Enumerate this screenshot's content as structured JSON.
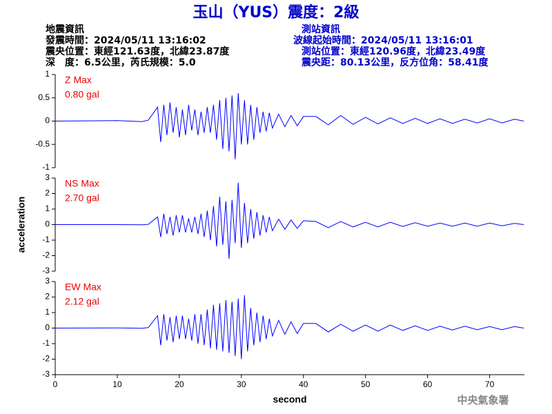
{
  "header": {
    "title": "玉山（YUS）震度：2級",
    "event_info": [
      "地震資訊",
      "發震時間：2024/05/11 13:16:02",
      "震央位置：東經121.63度，北緯23.87度",
      "深　度：6.5公里，芮氏規模：5.0"
    ],
    "station_info": [
      "測站資訊",
      "波線起始時間：2024/05/11 13:16:01",
      "測站位置：東經120.96度，北緯23.49度",
      "震央距：80.13公里，反方位角：58.41度"
    ]
  },
  "chart_data": [
    {
      "type": "line",
      "annotation": [
        "Z Max",
        "0.80 gal"
      ],
      "color": "#0000ff",
      "xlim": [
        0,
        75.6
      ],
      "ylim": [
        -1,
        1
      ],
      "yticks": [
        -1,
        -0.5,
        0,
        0.5,
        1
      ],
      "x": [
        0,
        10,
        14,
        15,
        16.5,
        17,
        17.5,
        18,
        18.5,
        19,
        19.5,
        20,
        20.5,
        21,
        21.5,
        22,
        22.5,
        23,
        23.5,
        24,
        24.5,
        25,
        25.5,
        26,
        26.5,
        27,
        27.5,
        28,
        28.5,
        29,
        29.5,
        30,
        30.5,
        31,
        31.5,
        32,
        32.5,
        33,
        33.5,
        34,
        34.5,
        35,
        36,
        37,
        38,
        39,
        40,
        42,
        44,
        46,
        48,
        50,
        52,
        54,
        56,
        58,
        60,
        62,
        64,
        66,
        68,
        70,
        72,
        74,
        75.5
      ],
      "values": [
        0,
        0.01,
        -0.01,
        0.02,
        0.3,
        -0.45,
        0.35,
        -0.3,
        0.4,
        -0.25,
        0.3,
        -0.35,
        0.25,
        -0.3,
        0.35,
        -0.2,
        0.25,
        -0.3,
        0.2,
        -0.25,
        0.3,
        -0.25,
        0.35,
        -0.4,
        0.45,
        -0.6,
        0.5,
        -0.65,
        0.55,
        -0.82,
        0.6,
        -0.5,
        0.45,
        -0.5,
        0.35,
        -0.4,
        0.3,
        -0.25,
        0.2,
        -0.22,
        0.18,
        -0.15,
        0.15,
        -0.12,
        0.12,
        -0.1,
        0.1,
        0.1,
        -0.08,
        0.12,
        -0.07,
        0.08,
        -0.06,
        0.07,
        -0.05,
        0.06,
        -0.05,
        0.05,
        -0.05,
        0.04,
        -0.04,
        0.05,
        -0.04,
        0.04,
        0
      ]
    },
    {
      "type": "line",
      "annotation": [
        "NS Max",
        "2.70 gal"
      ],
      "color": "#0000ff",
      "xlim": [
        0,
        75.6
      ],
      "ylim": [
        -3,
        3
      ],
      "yticks": [
        -3,
        -2,
        -1,
        0,
        1,
        2,
        3
      ],
      "ylabel": "acceleration",
      "x": [
        0,
        10,
        14,
        15,
        16.5,
        17,
        17.5,
        18,
        18.5,
        19,
        19.5,
        20,
        20.5,
        21,
        21.5,
        22,
        22.5,
        23,
        23.5,
        24,
        24.5,
        25,
        25.5,
        26,
        26.5,
        27,
        27.5,
        28,
        28.5,
        29,
        29.5,
        30,
        30.5,
        31,
        31.5,
        32,
        32.5,
        33,
        33.5,
        34,
        34.5,
        35,
        36,
        37,
        38,
        39,
        40,
        42,
        44,
        46,
        48,
        50,
        52,
        54,
        56,
        58,
        60,
        62,
        64,
        66,
        68,
        70,
        72,
        74,
        75.5
      ],
      "values": [
        0,
        0,
        -0.01,
        0.02,
        0.5,
        -0.8,
        0.7,
        -0.6,
        0.5,
        -0.7,
        0.6,
        -0.5,
        0.6,
        -0.5,
        0.4,
        -0.5,
        0.5,
        -0.6,
        0.7,
        -0.8,
        0.9,
        -1.0,
        1.2,
        -1.4,
        1.8,
        -1.3,
        1.5,
        -2.2,
        1.6,
        -1.2,
        2.7,
        -1.5,
        1.4,
        -1.2,
        1.0,
        -0.9,
        0.8,
        -0.7,
        0.6,
        -0.5,
        0.5,
        -0.4,
        0.35,
        -0.3,
        0.3,
        -0.25,
        0.25,
        0.2,
        -0.2,
        0.2,
        -0.15,
        0.15,
        -0.15,
        0.15,
        -0.12,
        0.12,
        -0.1,
        0.1,
        -0.1,
        0.1,
        -0.1,
        0.1,
        -0.08,
        0.08,
        0
      ]
    },
    {
      "type": "line",
      "annotation": [
        "EW Max",
        "2.12 gal"
      ],
      "color": "#0000ff",
      "xlim": [
        0,
        75.6
      ],
      "ylim": [
        -3,
        3
      ],
      "yticks": [
        -3,
        -2,
        -1,
        0,
        1,
        2,
        3
      ],
      "xticks": [
        0,
        10,
        20,
        30,
        40,
        50,
        60,
        70
      ],
      "xlabel": "second",
      "x": [
        0,
        10,
        14,
        15,
        16.5,
        17,
        17.5,
        18,
        18.5,
        19,
        19.5,
        20,
        20.5,
        21,
        21.5,
        22,
        22.5,
        23,
        23.5,
        24,
        24.5,
        25,
        25.5,
        26,
        26.5,
        27,
        27.5,
        28,
        28.5,
        29,
        29.5,
        30,
        30.5,
        31,
        31.5,
        32,
        32.5,
        33,
        33.5,
        34,
        34.5,
        35,
        36,
        37,
        38,
        39,
        40,
        42,
        44,
        46,
        48,
        50,
        52,
        54,
        56,
        58,
        60,
        62,
        64,
        66,
        68,
        70,
        72,
        74,
        75.5
      ],
      "values": [
        0,
        0.01,
        -0.01,
        0.03,
        0.8,
        -1.1,
        0.9,
        -0.8,
        0.7,
        -0.9,
        0.8,
        -0.7,
        0.8,
        -0.7,
        0.6,
        -0.8,
        0.9,
        -1.0,
        0.9,
        -1.1,
        1.2,
        -1.3,
        1.5,
        -1.4,
        1.6,
        -1.5,
        1.8,
        -1.6,
        1.7,
        -1.8,
        1.9,
        -2.0,
        2.12,
        -1.5,
        1.3,
        -1.1,
        1.0,
        -0.9,
        0.8,
        -0.7,
        0.6,
        -0.5,
        0.5,
        -0.4,
        0.4,
        -0.35,
        0.3,
        0.3,
        -0.25,
        0.25,
        -0.2,
        0.2,
        -0.2,
        0.2,
        -0.15,
        0.15,
        -0.15,
        0.12,
        -0.12,
        0.12,
        -0.1,
        0.1,
        -0.1,
        0.1,
        0
      ]
    }
  ],
  "footer": "中央氣象署"
}
